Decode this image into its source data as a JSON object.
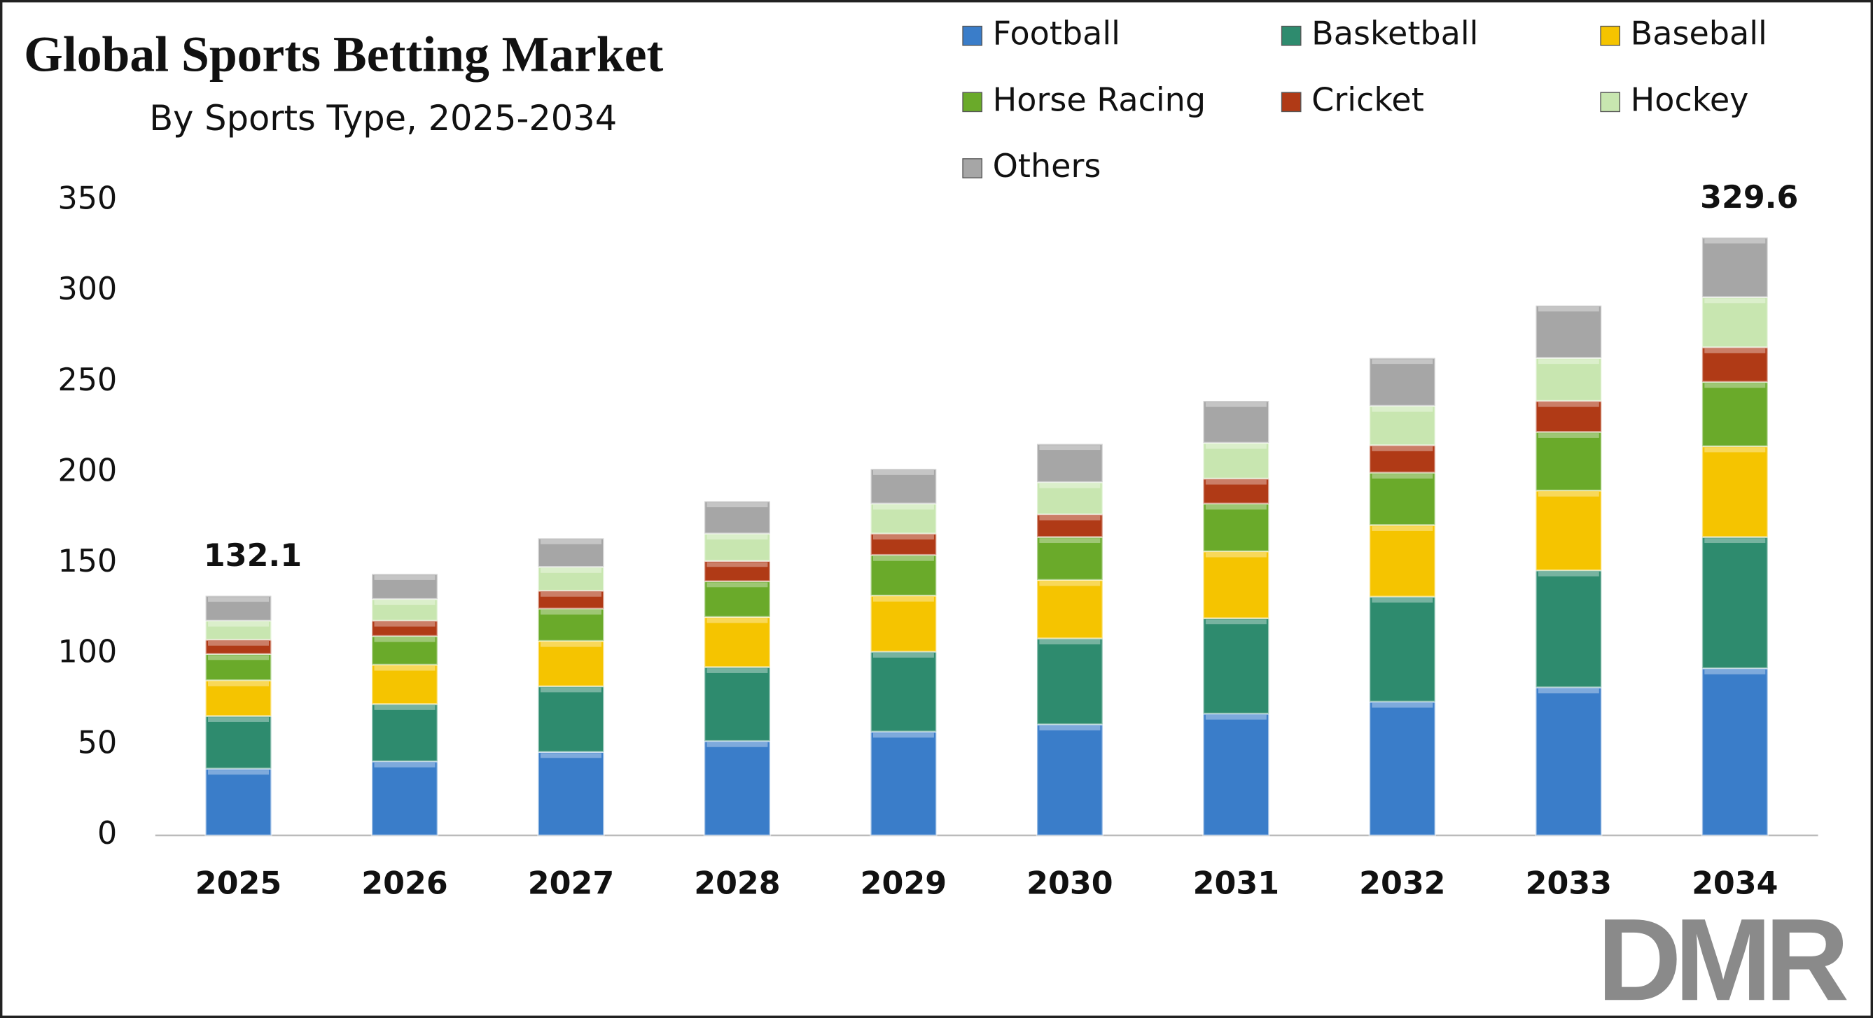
{
  "chart_data": {
    "type": "stacked_bar",
    "title": "Global Sports Betting Market",
    "subtitle": "By Sports Type, 2025-2034",
    "categories": [
      "2025",
      "2026",
      "2027",
      "2028",
      "2029",
      "2030",
      "2031",
      "2032",
      "2033",
      "2034"
    ],
    "series": [
      {
        "name": "Football",
        "color": "#3a7dc9",
        "values": [
          36.8,
          40.8,
          46.0,
          52.0,
          57.2,
          61.2,
          67.1,
          73.7,
          81.6,
          92.1
        ]
      },
      {
        "name": "Basketball",
        "color": "#2e8b6e",
        "values": [
          29.0,
          31.6,
          36.2,
          40.8,
          44.1,
          47.4,
          52.6,
          57.9,
          64.5,
          72.4
        ]
      },
      {
        "name": "Baseball",
        "color": "#f5c400",
        "values": [
          19.7,
          21.7,
          25.0,
          27.6,
          30.9,
          32.2,
          36.9,
          39.5,
          44.0,
          50.0
        ]
      },
      {
        "name": "Horse Racing",
        "color": "#6aaa2a",
        "values": [
          14.5,
          15.8,
          17.8,
          19.7,
          22.4,
          23.7,
          26.3,
          28.9,
          32.3,
          35.5
        ]
      },
      {
        "name": "Cricket",
        "color": "#b03a16",
        "values": [
          7.9,
          8.5,
          9.9,
          11.2,
          11.8,
          12.5,
          13.8,
          15.1,
          17.1,
          19.1
        ]
      },
      {
        "name": "Hockey",
        "color": "#c8e6b0",
        "values": [
          10.5,
          11.9,
          13.1,
          15.1,
          16.5,
          17.7,
          19.7,
          21.7,
          23.7,
          27.6
        ]
      },
      {
        "name": "Others",
        "color": "#a6a6a6",
        "values": [
          13.7,
          13.8,
          15.8,
          17.8,
          19.1,
          21.1,
          23.1,
          26.4,
          28.9,
          32.9
        ]
      }
    ],
    "total_labels": [
      {
        "category": "2025",
        "value": 132.1
      },
      {
        "category": "2034",
        "value": 329.6
      }
    ],
    "ylim": [
      0,
      350
    ],
    "yticks": [
      0,
      50,
      100,
      150,
      200,
      250,
      300,
      350
    ],
    "grid": false,
    "logo": "DMR"
  }
}
